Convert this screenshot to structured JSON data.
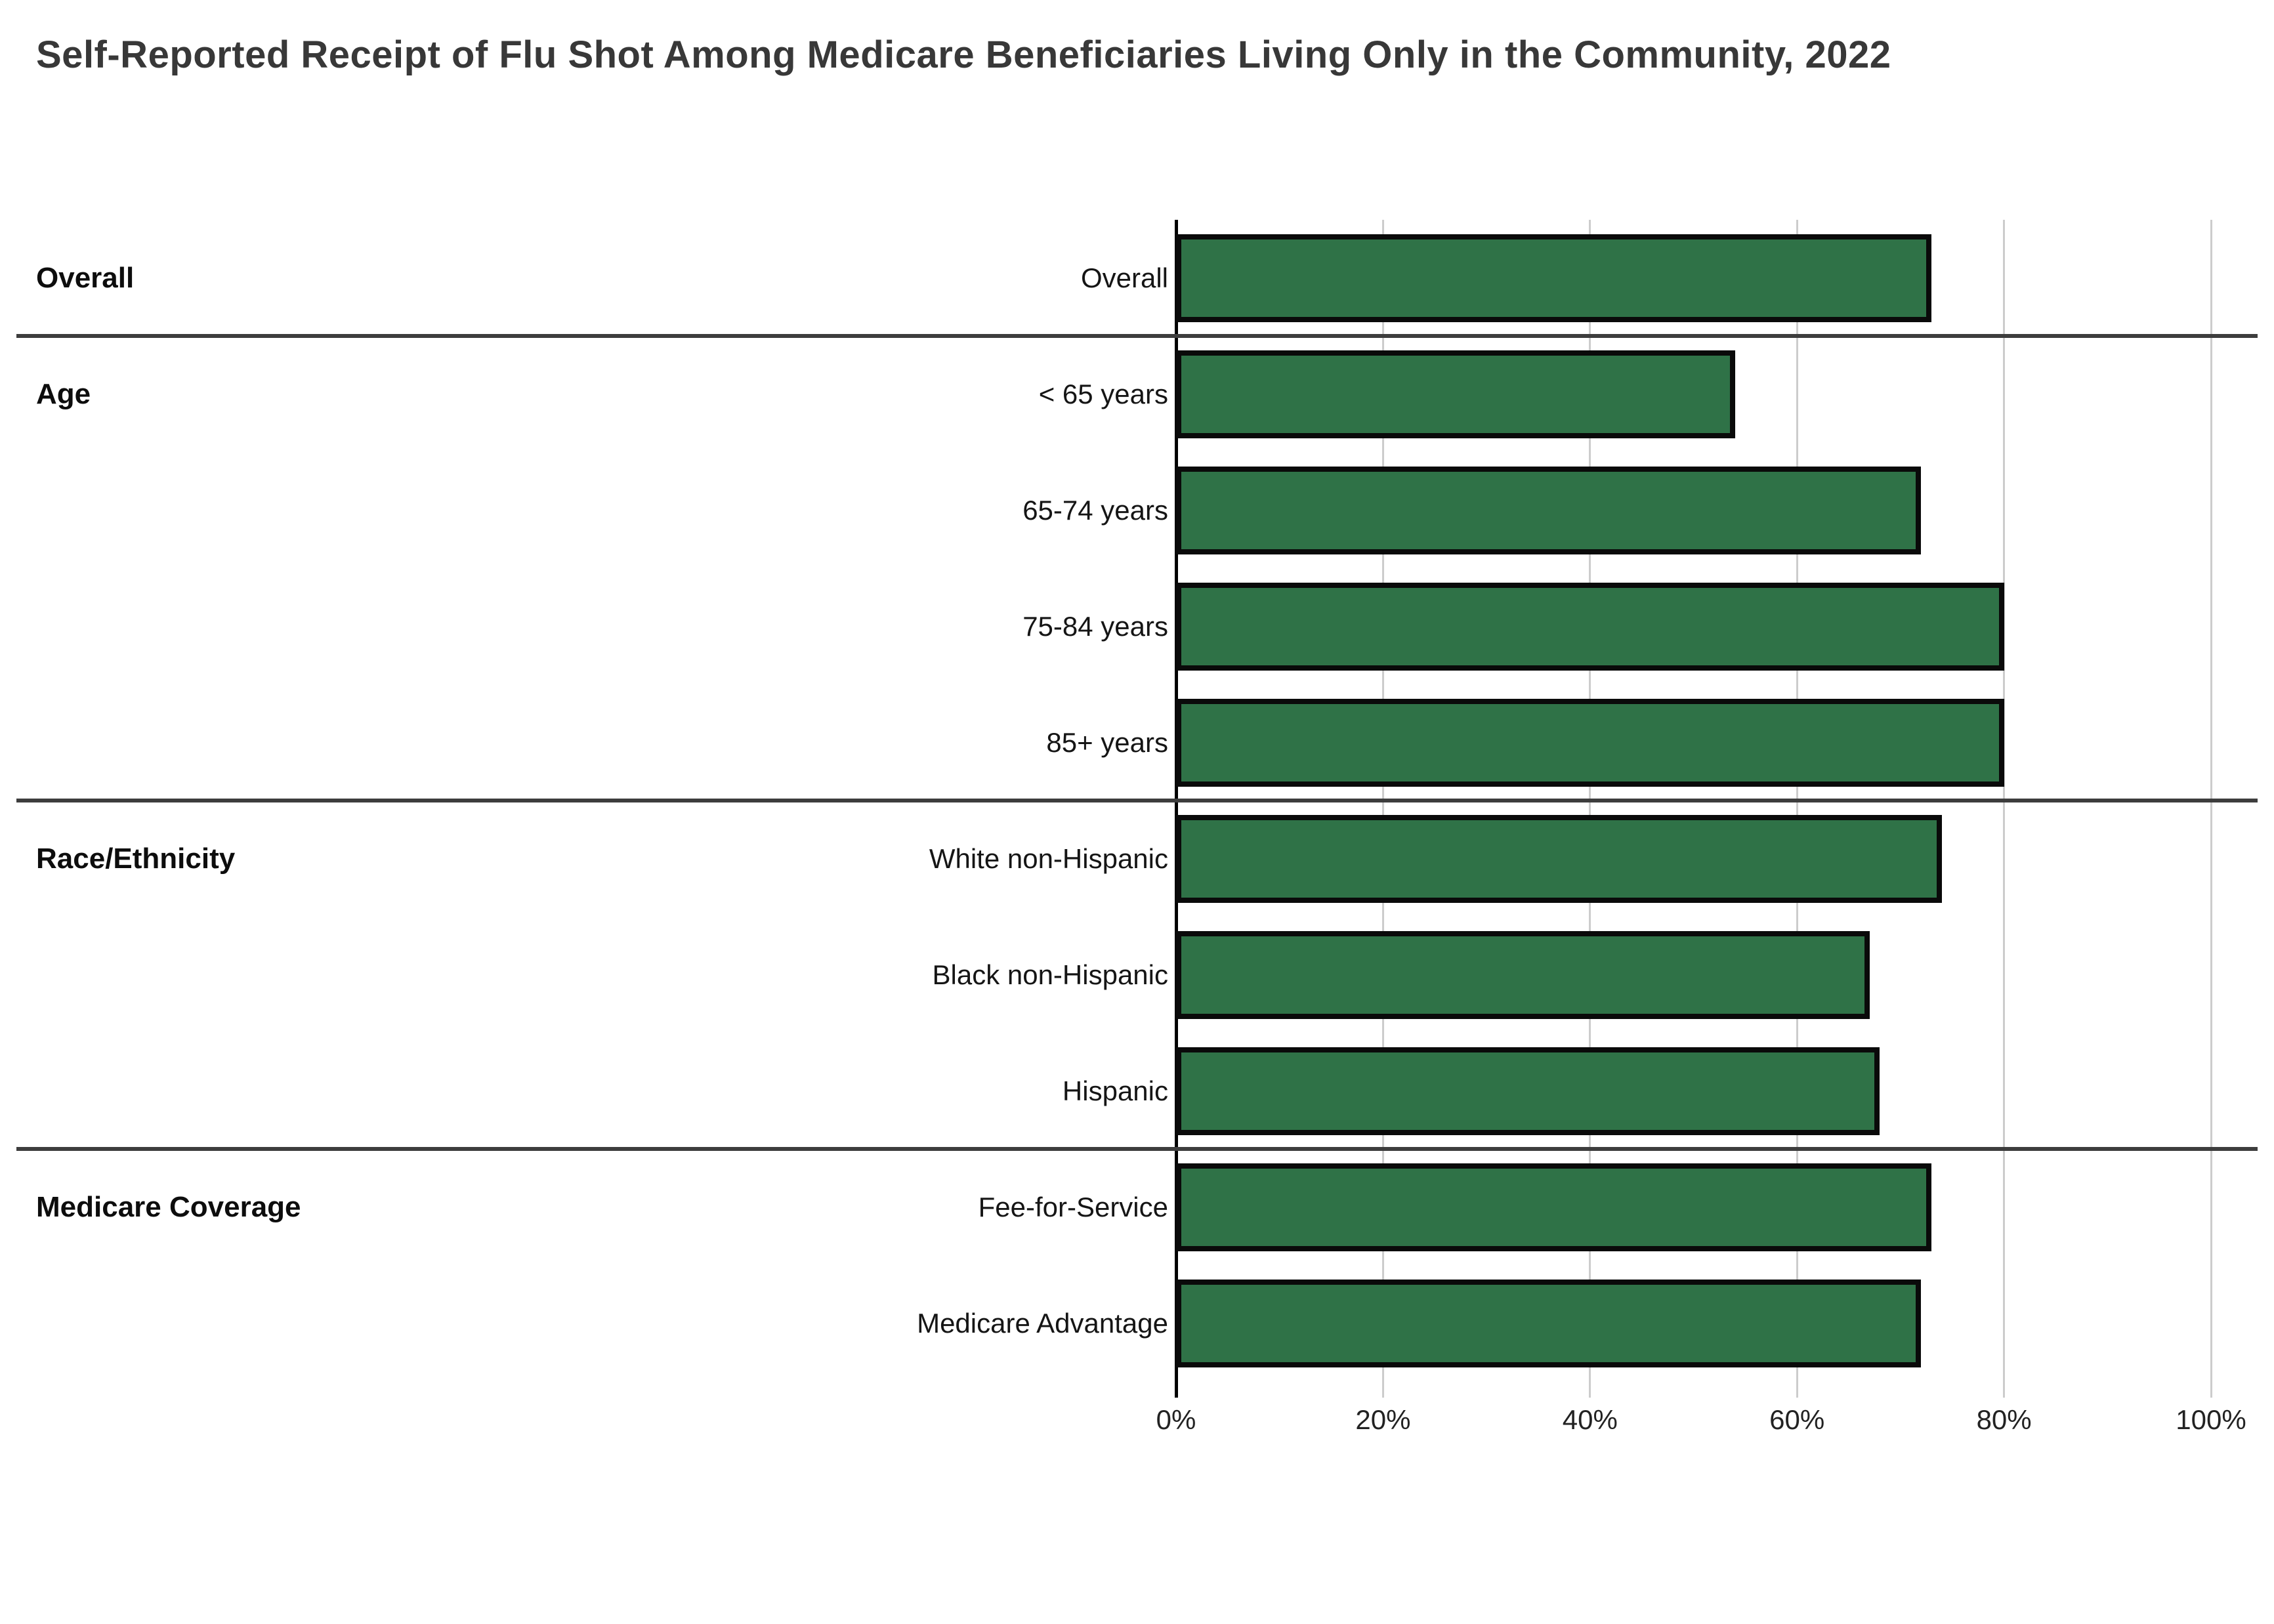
{
  "title": "Self-Reported Receipt of Flu Shot Among Medicare Beneficiaries Living Only in the Community, 2022",
  "chart_data": {
    "type": "bar",
    "orientation": "horizontal",
    "title": "Self-Reported Receipt of Flu Shot Among Medicare Beneficiaries Living Only in the Community, 2022",
    "xlabel": "",
    "ylabel": "",
    "xlim": [
      0,
      100
    ],
    "unit": "%",
    "grid": true,
    "legend": "none",
    "x_axis": {
      "tick_values": [
        0,
        20,
        40,
        60,
        80,
        100
      ],
      "tick_labels": [
        "0%",
        "20%",
        "40%",
        "60%",
        "80%",
        "100%"
      ]
    },
    "categories": [
      "Overall",
      "< 65 years",
      "65-74 years",
      "75-84 years",
      "85+ years",
      "White non-Hispanic",
      "Black non-Hispanic",
      "Hispanic",
      "Fee-for-Service",
      "Medicare Advantage"
    ],
    "values": [
      73,
      54,
      72,
      80,
      80,
      74,
      67,
      68,
      73,
      72
    ],
    "groups": [
      {
        "label": "Overall",
        "items": [
          {
            "label": "Overall",
            "value": 73
          }
        ]
      },
      {
        "label": "Age",
        "items": [
          {
            "label": "< 65 years",
            "value": 54
          },
          {
            "label": "65-74 years",
            "value": 72
          },
          {
            "label": "75-84 years",
            "value": 80
          },
          {
            "label": "85+ years",
            "value": 80
          }
        ]
      },
      {
        "label": "Race/Ethnicity",
        "items": [
          {
            "label": "White non-Hispanic",
            "value": 74
          },
          {
            "label": "Black non-Hispanic",
            "value": 67
          },
          {
            "label": "Hispanic",
            "value": 68
          }
        ]
      },
      {
        "label": "Medicare Coverage",
        "items": [
          {
            "label": "Fee-for-Service",
            "value": 73
          },
          {
            "label": "Medicare Advantage",
            "value": 72
          }
        ]
      }
    ],
    "colors": {
      "bar_fill": "#2F7247",
      "bar_border": "#0a0a0a",
      "gridline": "#cccccc",
      "zero_axis": "#000000",
      "section_divider": "#3d3d3d",
      "title_text": "#383838",
      "label_text": "#151515",
      "tick_text": "#222222",
      "background": "#ffffff"
    }
  }
}
